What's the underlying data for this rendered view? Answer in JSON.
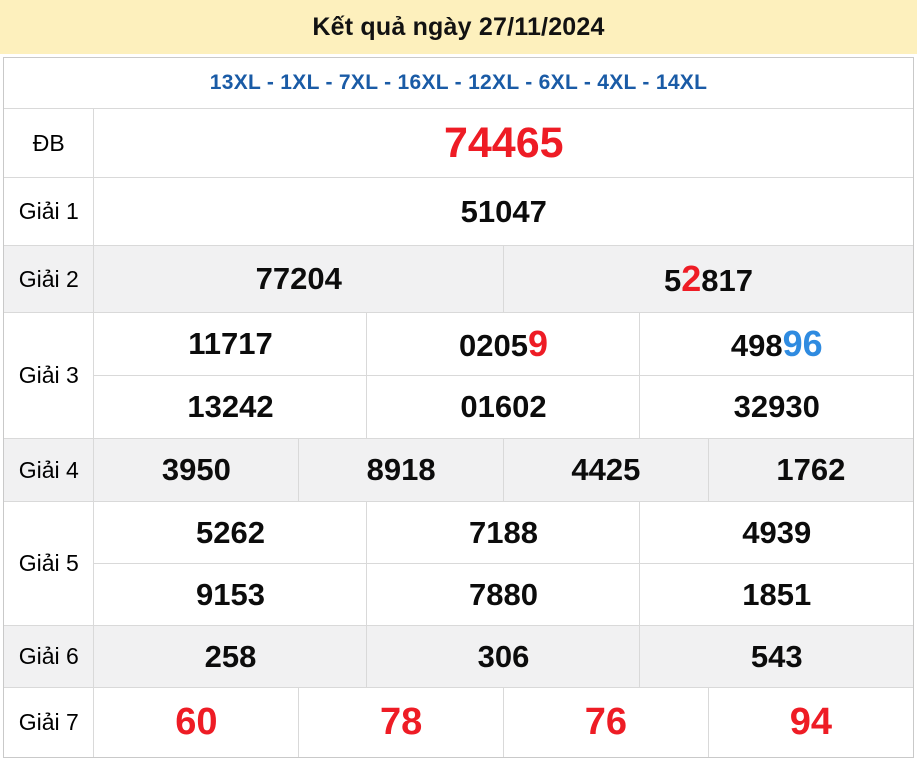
{
  "header": {
    "title": "Kết quả ngày 27/11/2024"
  },
  "subheader": {
    "stations_text": "13XL - 1XL - 7XL - 16XL - 12XL - 6XL - 4XL - 14XL"
  },
  "colors": {
    "banner_bg": "#fdf0bd",
    "station_blue": "#1a5ba6",
    "highlight_red": "#ee1c25",
    "highlight_blue": "#2f8be0",
    "shade_row_bg": "#f1f1f2",
    "border": "#d9d9d9"
  },
  "prizes": {
    "db": {
      "label": "ĐB",
      "value": "74465"
    },
    "g1": {
      "label": "Giải 1",
      "value": "51047"
    },
    "g2": {
      "label": "Giải 2",
      "cell1": "77204",
      "cell2": {
        "pre": "5",
        "red": "2",
        "post": "817"
      }
    },
    "g3": {
      "label": "Giải 3",
      "row1": [
        {
          "pre": "11717"
        },
        {
          "pre": "0205",
          "red": "9"
        },
        {
          "pre": "498",
          "blue": "96"
        }
      ],
      "row2": [
        "13242",
        "01602",
        "32930"
      ]
    },
    "g4": {
      "label": "Giải 4",
      "cells": [
        "3950",
        "8918",
        "4425",
        "1762"
      ]
    },
    "g5": {
      "label": "Giải 5",
      "row1": [
        "5262",
        "7188",
        "4939"
      ],
      "row2": [
        "9153",
        "7880",
        "1851"
      ]
    },
    "g6": {
      "label": "Giải 6",
      "cells": [
        "258",
        "306",
        "543"
      ]
    },
    "g7": {
      "label": "Giải 7",
      "cells": [
        "60",
        "78",
        "76",
        "94"
      ]
    }
  }
}
